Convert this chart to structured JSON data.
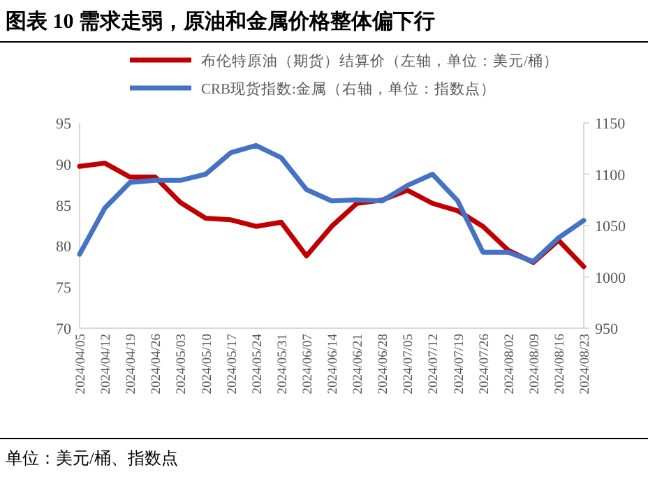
{
  "chart_data": {
    "type": "line",
    "title": "图表 10 需求走弱，原油和金属价格整体偏下行",
    "categories": [
      "2024/04/05",
      "2024/04/12",
      "2024/04/19",
      "2024/04/26",
      "2024/05/03",
      "2024/05/10",
      "2024/05/17",
      "2024/05/24",
      "2024/05/31",
      "2024/06/07",
      "2024/06/14",
      "2024/06/21",
      "2024/06/28",
      "2024/07/05",
      "2024/07/12",
      "2024/07/19",
      "2024/07/26",
      "2024/08/02",
      "2024/08/09",
      "2024/08/16",
      "2024/08/23"
    ],
    "series": [
      {
        "name": "布伦特原油（期货）结算价（左轴，单位：美元/桶）",
        "color": "#c00000",
        "values": [
          89.7,
          90.1,
          88.4,
          88.4,
          85.3,
          83.4,
          83.2,
          82.4,
          82.9,
          78.8,
          82.4,
          85.2,
          85.6,
          86.8,
          85.2,
          84.3,
          82.4,
          79.5,
          78.0,
          80.7,
          77.5
        ]
      },
      {
        "name": "CRB现货指数:金属（右轴，单位：指数点）",
        "color": "#4472c4",
        "axis": "y2",
        "values": [
          1022,
          1067,
          1092,
          1094,
          1094,
          1100,
          1121,
          1128,
          1116,
          1085,
          1074,
          1075,
          1074,
          1089,
          1100,
          1074,
          1024,
          1024,
          1015,
          1038,
          1055
        ]
      }
    ],
    "ylim": [
      70,
      95
    ],
    "yticks": [
      70,
      75,
      80,
      85,
      90,
      95
    ],
    "y2lim": [
      950,
      1150
    ],
    "y2ticks": [
      950,
      1000,
      1050,
      1100,
      1150
    ],
    "legend": "top",
    "annotations": [
      "单位：美元/桶、指数点"
    ]
  }
}
